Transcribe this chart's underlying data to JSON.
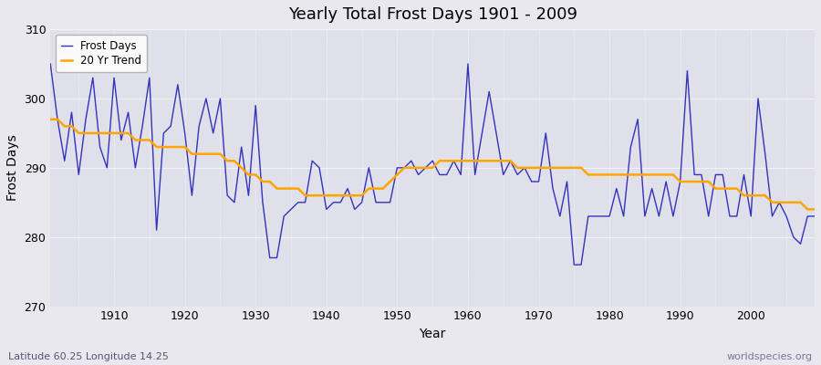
{
  "title": "Yearly Total Frost Days 1901 - 2009",
  "xlabel": "Year",
  "ylabel": "Frost Days",
  "xlim": [
    1901,
    2009
  ],
  "ylim": [
    270,
    310
  ],
  "yticks": [
    270,
    280,
    290,
    300,
    310
  ],
  "legend_labels": [
    "Frost Days",
    "20 Yr Trend"
  ],
  "frost_color": "#3333bb",
  "trend_color": "#ffa500",
  "background_color": "#e8e8ee",
  "plot_bg_color": "#e0e0ea",
  "subtitle": "Latitude 60.25 Longitude 14.25",
  "watermark": "worldspecies.org",
  "years": [
    1901,
    1902,
    1903,
    1904,
    1905,
    1906,
    1907,
    1908,
    1909,
    1910,
    1911,
    1912,
    1913,
    1914,
    1915,
    1916,
    1917,
    1918,
    1919,
    1920,
    1921,
    1922,
    1923,
    1924,
    1925,
    1926,
    1927,
    1928,
    1929,
    1930,
    1931,
    1932,
    1933,
    1934,
    1935,
    1936,
    1937,
    1938,
    1939,
    1940,
    1941,
    1942,
    1943,
    1944,
    1945,
    1946,
    1947,
    1948,
    1949,
    1950,
    1951,
    1952,
    1953,
    1954,
    1955,
    1956,
    1957,
    1958,
    1959,
    1960,
    1961,
    1962,
    1963,
    1964,
    1965,
    1966,
    1967,
    1968,
    1969,
    1970,
    1971,
    1972,
    1973,
    1974,
    1975,
    1976,
    1977,
    1978,
    1979,
    1980,
    1981,
    1982,
    1983,
    1984,
    1985,
    1986,
    1987,
    1988,
    1989,
    1990,
    1991,
    1992,
    1993,
    1994,
    1995,
    1996,
    1997,
    1998,
    1999,
    2000,
    2001,
    2002,
    2003,
    2004,
    2005,
    2006,
    2007,
    2008,
    2009
  ],
  "frost_days": [
    305,
    297,
    291,
    298,
    289,
    297,
    303,
    293,
    290,
    303,
    294,
    298,
    290,
    296,
    303,
    281,
    295,
    296,
    302,
    295,
    286,
    296,
    300,
    295,
    300,
    286,
    285,
    293,
    286,
    299,
    285,
    277,
    277,
    283,
    284,
    285,
    285,
    291,
    290,
    284,
    285,
    285,
    287,
    284,
    285,
    290,
    285,
    285,
    285,
    290,
    290,
    291,
    289,
    290,
    291,
    289,
    289,
    291,
    289,
    305,
    289,
    295,
    301,
    295,
    289,
    291,
    289,
    290,
    288,
    288,
    295,
    287,
    283,
    288,
    276,
    276,
    283,
    283,
    283,
    283,
    287,
    283,
    293,
    297,
    283,
    287,
    283,
    288,
    283,
    288,
    304,
    289,
    289,
    283,
    289,
    289,
    283,
    283,
    289,
    283,
    300,
    292,
    283,
    285,
    283,
    280,
    279,
    283,
    283
  ],
  "trend_years": [
    1901,
    1902,
    1903,
    1904,
    1905,
    1906,
    1907,
    1908,
    1909,
    1910,
    1911,
    1912,
    1913,
    1914,
    1915,
    1916,
    1917,
    1918,
    1919,
    1920,
    1921,
    1922,
    1923,
    1924,
    1925,
    1926,
    1927,
    1928,
    1929,
    1930,
    1931,
    1932,
    1933,
    1934,
    1935,
    1936,
    1937,
    1938,
    1939,
    1940,
    1941,
    1942,
    1943,
    1944,
    1945,
    1946,
    1947,
    1948,
    1949,
    1950,
    1951,
    1952,
    1953,
    1954,
    1955,
    1956,
    1957,
    1958,
    1959,
    1960,
    1961,
    1962,
    1963,
    1964,
    1965,
    1966,
    1967,
    1968,
    1969,
    1970,
    1971,
    1972,
    1973,
    1974,
    1975,
    1976,
    1977,
    1978,
    1979,
    1980,
    1981,
    1982,
    1983,
    1984,
    1985,
    1986,
    1987,
    1988,
    1989,
    1990,
    1991,
    1992,
    1993,
    1994,
    1995,
    1996,
    1997,
    1998,
    1999,
    2000,
    2001,
    2002,
    2003,
    2004,
    2005,
    2006,
    2007,
    2008,
    2009
  ],
  "trend_values": [
    297,
    297,
    296,
    296,
    295,
    295,
    295,
    295,
    295,
    295,
    295,
    295,
    294,
    294,
    294,
    293,
    293,
    293,
    293,
    293,
    292,
    292,
    292,
    292,
    292,
    291,
    291,
    290,
    289,
    289,
    288,
    288,
    287,
    287,
    287,
    287,
    286,
    286,
    286,
    286,
    286,
    286,
    286,
    286,
    286,
    287,
    287,
    287,
    288,
    289,
    290,
    290,
    290,
    290,
    290,
    291,
    291,
    291,
    291,
    291,
    291,
    291,
    291,
    291,
    291,
    291,
    290,
    290,
    290,
    290,
    290,
    290,
    290,
    290,
    290,
    290,
    289,
    289,
    289,
    289,
    289,
    289,
    289,
    289,
    289,
    289,
    289,
    289,
    289,
    288,
    288,
    288,
    288,
    288,
    287,
    287,
    287,
    287,
    286,
    286,
    286,
    286,
    285,
    285,
    285,
    285,
    285,
    284,
    284
  ]
}
